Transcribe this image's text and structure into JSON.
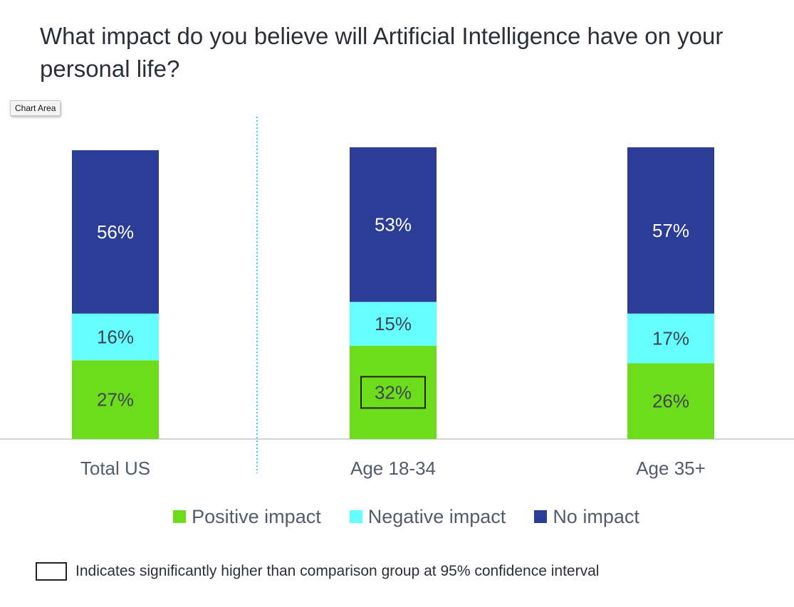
{
  "chart_data": {
    "type": "bar",
    "stacked": true,
    "title": "What impact do you believe will Artificial Intelligence have on your personal life?",
    "categories": [
      "Total US",
      "Age 18-34",
      "Age 35+"
    ],
    "series": [
      {
        "name": "Positive impact",
        "color": "#6ddc1a",
        "values": [
          27,
          32,
          26
        ],
        "labels": [
          "27%",
          "32%",
          "26%"
        ]
      },
      {
        "name": "Negative impact",
        "color": "#66ffff",
        "values": [
          16,
          15,
          17
        ],
        "labels": [
          "16%",
          "15%",
          "17%"
        ]
      },
      {
        "name": "No impact",
        "color": "#2b3d96",
        "values": [
          56,
          53,
          57
        ],
        "labels": [
          "56%",
          "53%",
          "57%"
        ]
      }
    ],
    "highlighted": [
      {
        "category": "Age 18-34",
        "series": "Positive impact"
      }
    ],
    "ylim": [
      0,
      100
    ],
    "legend_position": "bottom",
    "note": "Indicates significantly higher than comparison group at 95% confidence interval"
  },
  "tooltip": "Chart Area"
}
